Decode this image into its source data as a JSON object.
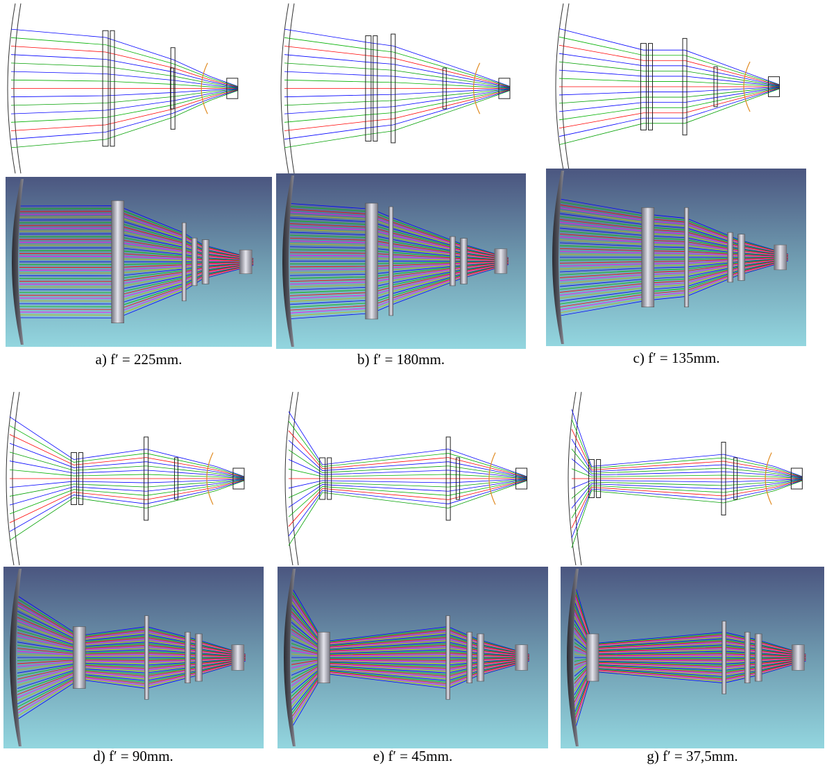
{
  "panels": [
    {
      "caption": "a) f′ = 225mm."
    },
    {
      "caption": "b) f′ = 180mm."
    },
    {
      "caption": "c) f′ = 135mm."
    },
    {
      "caption": "d) f′ = 90mm."
    },
    {
      "caption": "e) f′ = 45mm."
    },
    {
      "caption": "g) f′ = 37,5mm."
    }
  ]
}
